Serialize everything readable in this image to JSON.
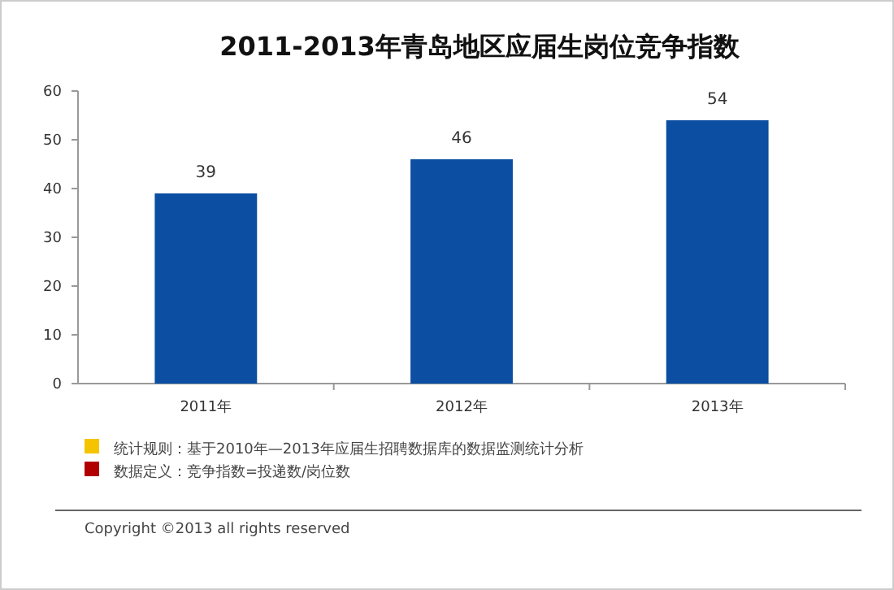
{
  "chart_data": {
    "type": "bar",
    "title": "2011-2013年青岛地区应届生岗位竞争指数",
    "categories": [
      "2011年",
      "2012年",
      "2013年"
    ],
    "values": [
      39,
      46,
      54
    ],
    "color": "#0b4ea2",
    "ylim": [
      0,
      60
    ],
    "yticks": [
      0,
      10,
      20,
      30,
      40,
      50,
      60
    ],
    "data_labels": true,
    "grid": false,
    "annotations": [
      "统计规则：基于2010年—2013年应届生招聘数据库的数据监测统计分析",
      "数据定义：竞争指数=投递数/岗位数",
      "Copyright ©2013 all rights reserved"
    ]
  }
}
